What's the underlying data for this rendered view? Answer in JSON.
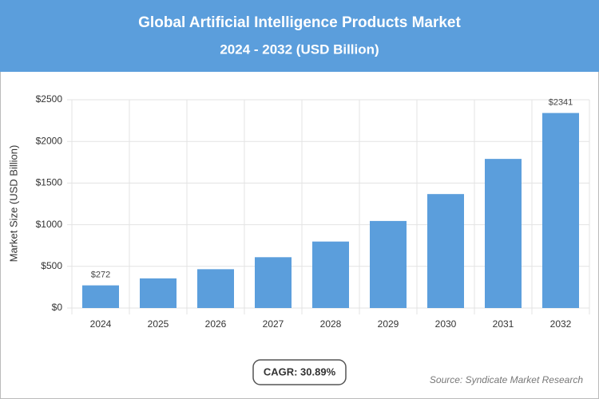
{
  "chart_data": {
    "type": "bar",
    "title": "Global Artificial Intelligence Products Market",
    "subtitle": "2024 - 2032 (USD Billion)",
    "y_label": "Market Size (USD Billion)",
    "categories": [
      "2024",
      "2025",
      "2026",
      "2027",
      "2028",
      "2029",
      "2030",
      "2031",
      "2032"
    ],
    "values": [
      272,
      356,
      466,
      610,
      798,
      1045,
      1368,
      1790,
      2341
    ],
    "value_labels": [
      "$272",
      null,
      null,
      null,
      null,
      null,
      null,
      null,
      "$2341"
    ],
    "color": "#5b9edc",
    "ylim": [
      0,
      2500
    ],
    "yticks": [
      {
        "value": 0,
        "label": "$0"
      },
      {
        "value": 500,
        "label": "$500"
      },
      {
        "value": 1000,
        "label": "$1000"
      },
      {
        "value": 1500,
        "label": "$1500"
      },
      {
        "value": 2000,
        "label": "$2000"
      },
      {
        "value": 2500,
        "label": "$2500"
      }
    ],
    "grid": true,
    "annotation": "CAGR: 30.89%",
    "source": "Source: Syndicate Market Research"
  }
}
